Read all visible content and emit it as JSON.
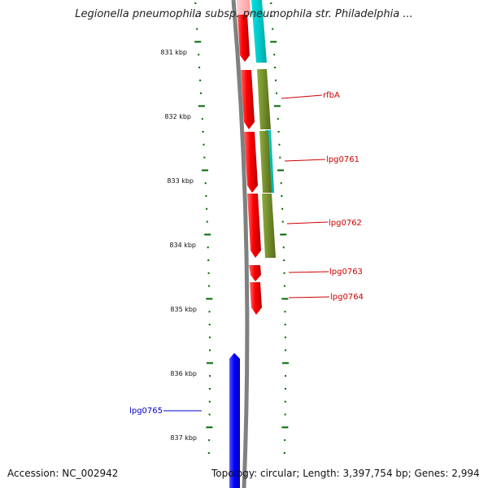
{
  "header": {
    "title": "Legionella pneumophila subsp. pneumophila str. Philadelphia ..."
  },
  "footer": {
    "accession": "Accession: NC_002942",
    "summary": "Topology: circular; Length: 3,397,754 bp; Genes: 2,994"
  },
  "ruler": {
    "unit": "kbp",
    "ticks": [
      {
        "label": "831 kbp"
      },
      {
        "label": "832 kbp"
      },
      {
        "label": "833 kbp"
      },
      {
        "label": "834 kbp"
      },
      {
        "label": "835 kbp"
      },
      {
        "label": "836 kbp"
      },
      {
        "label": "837 kbp"
      }
    ]
  },
  "genes": [
    {
      "label": "rfbA",
      "strand": "forward",
      "color": "#cc0000"
    },
    {
      "label": "lpg0761",
      "strand": "forward",
      "color": "#cc0000"
    },
    {
      "label": "lpg0762",
      "strand": "forward",
      "color": "#cc0000"
    },
    {
      "label": "lpg0763",
      "strand": "forward",
      "color": "#cc0000"
    },
    {
      "label": "lpg0764",
      "strand": "forward",
      "color": "#cc0000"
    },
    {
      "label": "lpg0765",
      "strand": "reverse",
      "color": "#0000cc"
    }
  ],
  "colors": {
    "forward_gene": "#ff0000",
    "reverse_gene": "#0000ff",
    "cyan_track": "#00cccc",
    "olive_track": "#6b8e23",
    "backbone": "#808080",
    "ticks": "#006600"
  }
}
